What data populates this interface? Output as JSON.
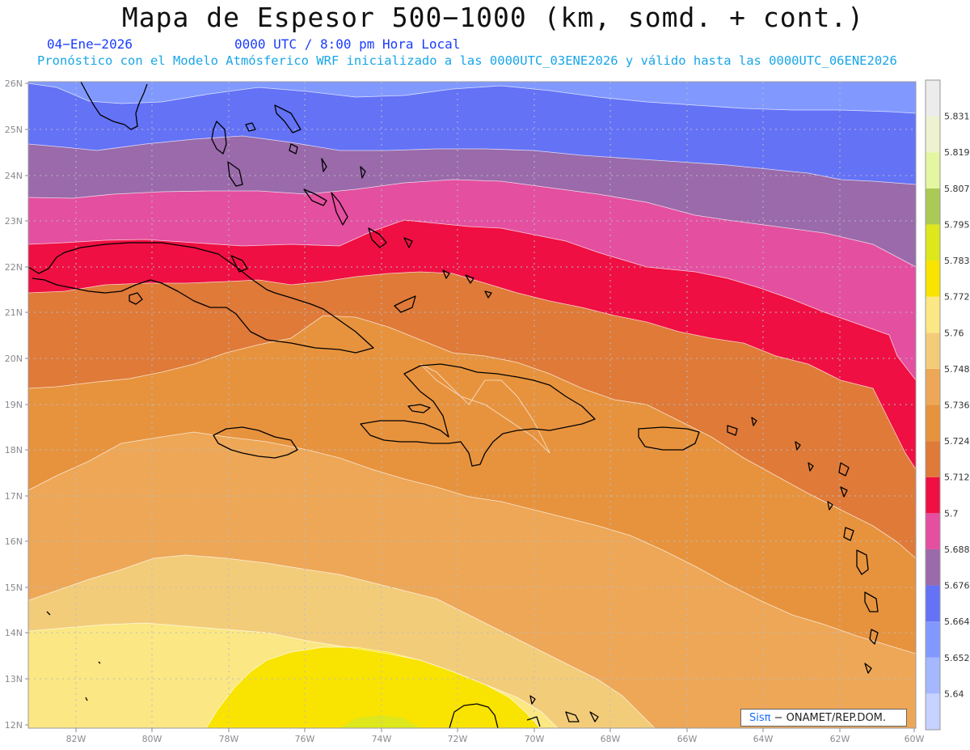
{
  "header": {
    "title": "Mapa de Espesor 500−1000 (km, somd. + cont.)",
    "date": "04−Ene−2026",
    "utc": "0000 UTC / 8:00 pm Hora Local",
    "info": "Pronóstico con el Modelo Atmósferico WRF inicializado a las 0000UTC_03ENE2026 y válido hasta las  0000UTC_06ENE2026"
  },
  "map": {
    "lat_labels": [
      "26N",
      "25N",
      "24N",
      "23N",
      "22N",
      "21N",
      "20N",
      "19N",
      "18N",
      "17N",
      "16N",
      "15N",
      "14N",
      "13N",
      "12N"
    ],
    "lon_labels": [
      "82W",
      "80W",
      "78W",
      "76W",
      "74W",
      "72W",
      "70W",
      "68W",
      "66W",
      "64W",
      "62W",
      "60W"
    ],
    "lat_range": [
      12,
      26
    ],
    "lon_range": [
      -83.2,
      -60
    ]
  },
  "colorbar": {
    "levels": [
      "5.64",
      "5.652",
      "5.664",
      "5.676",
      "5.688",
      "5.7",
      "5.712",
      "5.724",
      "5.736",
      "5.748",
      "5.76",
      "5.772",
      "5.783",
      "5.795",
      "5.807",
      "5.819",
      "5.831"
    ],
    "colors": [
      "#c6d2ff",
      "#a4b7ff",
      "#8199ff",
      "#6472f6",
      "#9a6aaa",
      "#e44f9f",
      "#ef0f42",
      "#df7a38",
      "#e7933e",
      "#eda757",
      "#f3cc7a",
      "#fbe783",
      "#f9e300",
      "#dde71c",
      "#aaca55",
      "#e4f6a0",
      "#eef2d0",
      "#ececec"
    ]
  },
  "credit": {
    "brand": "Sisπ",
    "text": "− ONAMET/REP.DOM."
  }
}
